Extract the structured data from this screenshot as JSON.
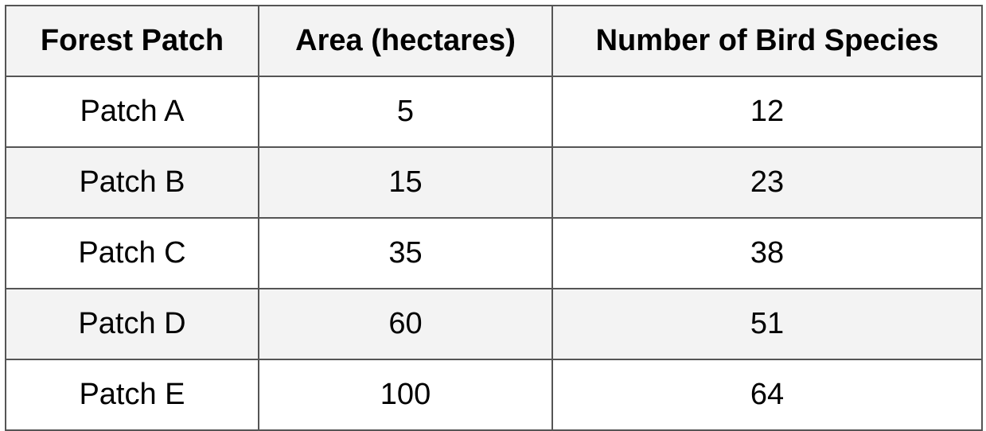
{
  "chart_data": {
    "type": "table",
    "columns": [
      "Forest Patch",
      "Area (hectares)",
      "Number of Bird Species"
    ],
    "rows": [
      [
        "Patch A",
        "5",
        "12"
      ],
      [
        "Patch B",
        "15",
        "23"
      ],
      [
        "Patch C",
        "35",
        "38"
      ],
      [
        "Patch D",
        "60",
        "51"
      ],
      [
        "Patch E",
        "100",
        "64"
      ]
    ]
  },
  "colors": {
    "header_bg": "#f3f3f3",
    "alt_row_bg": "#f3f3f3",
    "border": "#555555"
  }
}
